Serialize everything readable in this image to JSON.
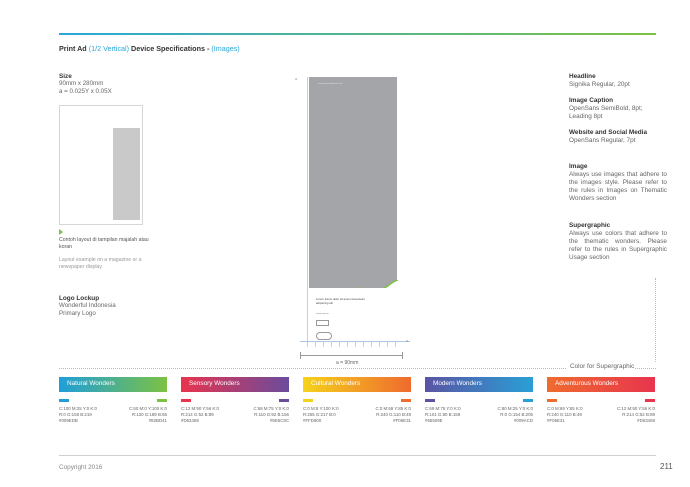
{
  "header": {
    "title": "Print Ad",
    "title_sub": "(1/2 Vertical)",
    "title_rest": "Device Specifications -",
    "title_paren": "(Images)"
  },
  "left": {
    "size_label": "Size",
    "size_value": "90mm x 280mm",
    "size_formula": "a = 0.025Y x 0.05X",
    "caption_id": "Contoh layout di tampilan majalah atau koran",
    "caption_en": "Layout example on a magazine or a newspaper display",
    "logo_label": "Logo Lockup",
    "logo_value1": "Wonderful Indonesia",
    "logo_value2": "Primary Logo"
  },
  "mockup": {
    "gray_text": "Lorem ipsum dolor sit amet",
    "headline": "Lorem ipsum dolor sit amet consectetur adipiscing elit",
    "small_text": "Lorem ipsum",
    "corner_a": "a",
    "corner_b": "a",
    "dimension": "a = 90mm"
  },
  "specs": [
    {
      "label": "Headline",
      "value": "Signika Regular, 20pt"
    },
    {
      "label": "Image Caption",
      "value": "OpenSans SemiBold, 8pt; Leading 8pt"
    },
    {
      "label": "Website and Social Media",
      "value": "OpenSans Regular, 7pt"
    },
    {
      "label": "Image",
      "value": "Always use images that adhere to the images style. Please refer to the rules in Images on Thematic Wonders section"
    },
    {
      "label": "Supergraphic",
      "value": "Always use colors that adhere to the thematic wonders. Please refer to the rules in Supergraphic Usage section"
    }
  ],
  "supergraphic_label": "Color for Supergraphic",
  "swatches": [
    {
      "name": "Natural Wonders",
      "from": "#1f9ed9",
      "to": "#7cc243",
      "c1": "#1f9ed9",
      "c2": "#7cc243",
      "left_vals": "C:100 M:25 Y:0 K:0\nR:0 G:158 B:219\n#009EDB",
      "right_vals": "C:60 M:0 Y:100 K:0\nR:130 G:189 B:65\n#82BD41"
    },
    {
      "name": "Sensory Wonders",
      "from": "#e8344e",
      "to": "#6a4c9c",
      "c1": "#e8344e",
      "c2": "#6a4c9c",
      "left_vals": "C:12 M:90 Y:56 K:0\nR:214 G:52 B:89\n#D63459",
      "right_vals": "C:68 M:75 Y:0 K:0\nR:110 G:92 B:156\n#6E5C9C"
    },
    {
      "name": "Cultural Wonders",
      "from": "#f5d21c",
      "to": "#ef6b2e",
      "c1": "#f5d21c",
      "c2": "#ef6b2e",
      "left_vals": "C:0 M:8 Y:100 K:0\nR:255 G:217 B:0\n#FFD900",
      "right_vals": "C:0 M:69 Y:85 K:0\nR:240 G:110 B:49\n#F06E31"
    },
    {
      "name": "Modern Wonders",
      "from": "#5a54a4",
      "to": "#2a9fd6",
      "c1": "#5a54a4",
      "c2": "#2a9fd6",
      "left_vals": "C:69 M:75 Y:0 K:0\nR:101 G:80 B:158\n#65509E",
      "right_vals": "C:80 M:25 Y:0 K:0\nR:0 G:154 B:205\n#009ACD"
    },
    {
      "name": "Adventurous Wonders",
      "from": "#ef6b2e",
      "to": "#e8344e",
      "c1": "#ef6b2e",
      "c2": "#e8344e",
      "left_vals": "C:0 M:69 Y:85 K:0\nR:240 G:110 B:49\n#F06E31",
      "right_vals": "C:12 M:90 Y:56 K:0\nR:214 G:52 B:89\n#D63459"
    }
  ],
  "footer": {
    "copyright": "Copyright 2016",
    "page": "211"
  }
}
